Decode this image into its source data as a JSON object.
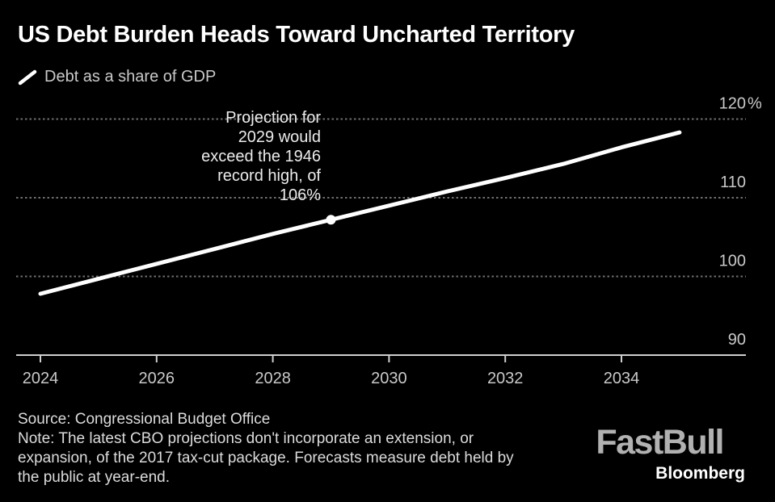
{
  "title": "US Debt Burden Heads Toward Uncharted Territory",
  "legend": {
    "swatch": "diagonal-line",
    "label": "Debt as a share of GDP"
  },
  "annotation": {
    "text": "Projection for\n2029 would\nexceed the 1946\nrecord high, of\n106%"
  },
  "footer": {
    "source": "Source: Congressional Budget Office",
    "note": "Note: The latest CBO projections don't incorporate an extension, or\nexpansion, of the 2017 tax-cut package. Forecasts measure debt held by\nthe public at year-end."
  },
  "brand": {
    "logo": "FastBull",
    "byline": "Bloomberg"
  },
  "colors": {
    "background": "#000000",
    "title": "#ffffff",
    "axis_text": "#c9c9c9",
    "gridline": "#6f6f6f",
    "axis_line": "#cfcfcf",
    "series_line": "#ffffff",
    "marker_dot": "#ffffff",
    "annotation_text": "#ececec",
    "footer_text": "#dcdcdc",
    "fastbull_logo": "#b1b1b1",
    "bloomberg_text": "#ffffff"
  },
  "chart_data": {
    "type": "line",
    "title": "US Debt Burden Heads Toward Uncharted Territory",
    "subtitle_legend": "Debt as a share of GDP",
    "unit": "%",
    "axis_side": "right",
    "grid": "horizontal-dotted",
    "ylim": [
      90,
      120
    ],
    "series": [
      {
        "name": "Debt as a share of GDP",
        "x": [
          2024,
          2025,
          2026,
          2027,
          2028,
          2029,
          2030,
          2031,
          2032,
          2033,
          2034,
          2035
        ],
        "values": [
          97.8,
          99.7,
          101.6,
          103.5,
          105.4,
          107.2,
          109.0,
          110.8,
          112.5,
          114.3,
          116.4,
          118.3
        ]
      }
    ],
    "marker": {
      "x": 2029,
      "value": 107.2,
      "label": "106%",
      "note": "Projection for 2029 would exceed the 1946 record high, of 106%"
    },
    "y_ticks": [
      {
        "value": 120,
        "label": "120",
        "suffix": "%"
      },
      {
        "value": 110,
        "label": "110",
        "suffix": ""
      },
      {
        "value": 100,
        "label": "100",
        "suffix": ""
      },
      {
        "value": 90,
        "label": "90",
        "suffix": ""
      }
    ],
    "y_gridlines": [
      120,
      110,
      100
    ],
    "x_ticks": [
      {
        "value": 2024,
        "label": "2024"
      },
      {
        "value": 2026,
        "label": "2026"
      },
      {
        "value": 2028,
        "label": "2028"
      },
      {
        "value": 2030,
        "label": "2030"
      },
      {
        "value": 2032,
        "label": "2032"
      },
      {
        "value": 2034,
        "label": "2034"
      }
    ]
  }
}
